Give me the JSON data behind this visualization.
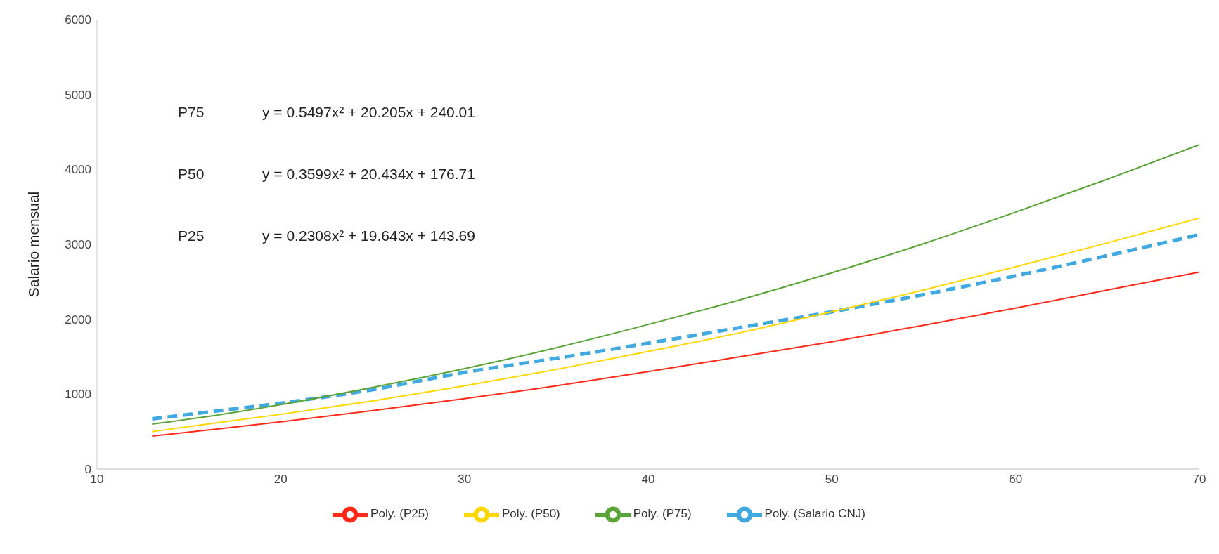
{
  "chart_data": {
    "type": "line",
    "ylabel": "Salario mensual",
    "x": [
      13,
      16,
      20,
      25,
      30,
      35,
      40,
      45,
      50,
      55,
      60,
      65,
      70
    ],
    "xlim": [
      10,
      70
    ],
    "xticks": [
      10,
      20,
      30,
      40,
      50,
      60,
      70
    ],
    "ylim": [
      0,
      6000
    ],
    "yticks": [
      0,
      1000,
      2000,
      3000,
      4000,
      5000,
      6000
    ],
    "grid": false,
    "legend": "bottom",
    "marker": "none",
    "line_style": "solid",
    "annotations": [
      "P75",
      "y = 0.5497x² + 20.205x + 240.01",
      "P50",
      "y = 0.3599x² + 20.434x + 176.71",
      "P25",
      "y = 0.2308x² + 19.643x + 143.69"
    ],
    "series": [
      {
        "name": "Poly. (Salario CNJ)",
        "color": "#3fa9e0",
        "line_style": "dashed",
        "values": [
          670,
          760,
          880,
          1060,
          1290,
          1480,
          1680,
          1890,
          2100,
          2330,
          2580,
          2850,
          3130
        ]
      },
      {
        "name": "Poly. (P25)",
        "color": "#ff2a1a",
        "values": [
          440,
          520,
          630,
          780,
          940,
          1110,
          1300,
          1500,
          1700,
          1920,
          2150,
          2390,
          2630
        ]
      },
      {
        "name": "Poly. (P50)",
        "color": "#ffd700",
        "values": [
          500,
          600,
          730,
          910,
          1110,
          1330,
          1570,
          1820,
          2100,
          2390,
          2700,
          3020,
          3350
        ]
      },
      {
        "name": "Poly. (P75)",
        "color": "#5aa336",
        "values": [
          600,
          700,
          860,
          1090,
          1340,
          1620,
          1930,
          2260,
          2620,
          3010,
          3430,
          3870,
          4330
        ]
      }
    ]
  }
}
